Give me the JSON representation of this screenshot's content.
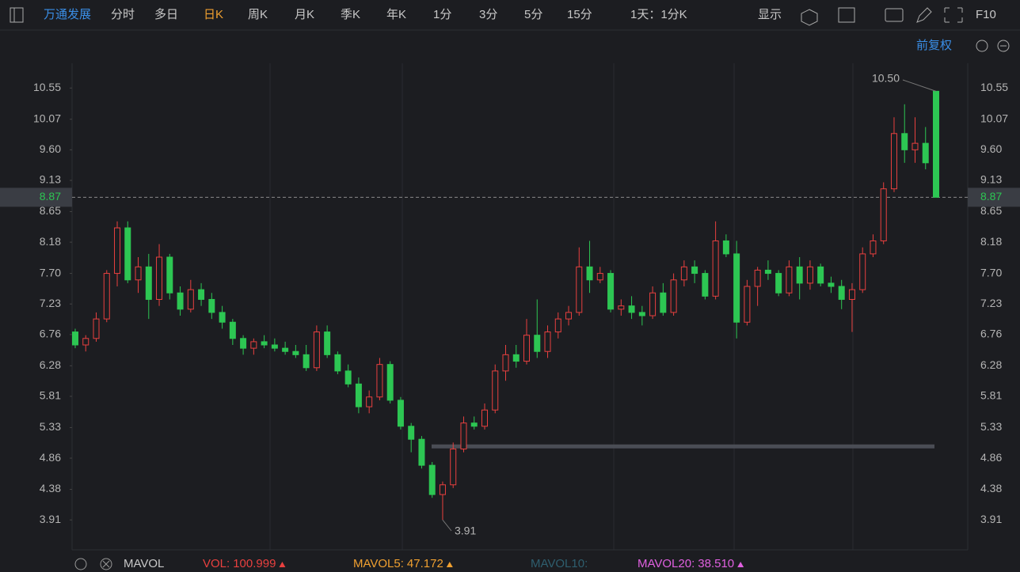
{
  "toolbar": {
    "stock": "万通发展",
    "periods": [
      "分时",
      "多日",
      "日K",
      "周K",
      "月K",
      "季K",
      "年K",
      "1分",
      "3分",
      "5分",
      "15分"
    ],
    "active_period": 2,
    "range": "1天：1分K",
    "display": "显示",
    "f10": "F10",
    "adjust": "前复权"
  },
  "indicator": {
    "name": "MAVOL",
    "items": [
      {
        "label": "VOL:",
        "value": "100.999",
        "color": "#e8403f"
      },
      {
        "label": "MAVOL5:",
        "value": "47.172",
        "color": "#f0a030"
      },
      {
        "label": "MAVOL10:",
        "value": "",
        "color": "#2e5e6e"
      },
      {
        "label": "MAVOL20:",
        "value": "38.510",
        "color": "#e060e0"
      }
    ]
  },
  "chart_data": {
    "type": "candlestick",
    "up_color": "#e8403f",
    "down_color": "#2dc653",
    "ylim": [
      3.45,
      10.93
    ],
    "yticks": [
      {
        "value": 10.55,
        "label": "10.55"
      },
      10.07,
      {
        "value": 9.6,
        "label": "9.60"
      },
      9.13,
      8.65,
      8.18,
      {
        "value": 7.7,
        "label": "7.70"
      },
      7.23,
      6.76,
      6.28,
      5.81,
      5.33,
      4.86,
      4.38,
      3.91
    ],
    "open": [
      6.8,
      6.6,
      6.7,
      7.0,
      7.7,
      8.4,
      7.6,
      7.8,
      7.3,
      7.95,
      7.4,
      7.15,
      7.45,
      7.3,
      7.1,
      6.95,
      6.7,
      6.55,
      6.65,
      6.6,
      6.55,
      6.5,
      6.45,
      6.25,
      6.8,
      6.45,
      6.2,
      6.0,
      5.65,
      5.8,
      6.3,
      5.75,
      5.35,
      5.15,
      4.75,
      4.3,
      4.45,
      5.0,
      5.4,
      5.35,
      5.6,
      6.2,
      6.45,
      6.35,
      6.75,
      6.5,
      6.8,
      7.0,
      7.1,
      7.8,
      7.6,
      7.7,
      7.15,
      7.2,
      7.1,
      7.05,
      7.4,
      7.1,
      7.6,
      7.8,
      7.7,
      7.35,
      8.2,
      8.0,
      6.95,
      7.5,
      7.75,
      7.7,
      7.4,
      7.8,
      7.55,
      7.8,
      7.55,
      7.5,
      7.3,
      7.45,
      8.0,
      8.2,
      9.0,
      9.85,
      9.6,
      9.7,
      10.5
    ],
    "high": [
      6.85,
      6.75,
      7.1,
      7.75,
      8.5,
      8.5,
      7.95,
      8.0,
      8.15,
      8.0,
      7.5,
      7.6,
      7.55,
      7.4,
      7.2,
      7.0,
      6.75,
      6.7,
      6.75,
      6.7,
      6.65,
      6.6,
      6.6,
      6.9,
      6.9,
      6.5,
      6.3,
      6.1,
      5.9,
      6.4,
      6.35,
      5.8,
      5.4,
      5.2,
      4.8,
      4.5,
      5.1,
      5.5,
      5.5,
      5.7,
      6.3,
      6.6,
      6.6,
      7.0,
      7.3,
      6.9,
      7.1,
      7.2,
      8.1,
      8.2,
      7.8,
      7.75,
      7.3,
      7.35,
      7.2,
      7.5,
      7.55,
      7.7,
      7.9,
      7.9,
      7.75,
      8.5,
      8.3,
      8.2,
      7.6,
      7.8,
      7.9,
      7.75,
      7.9,
      7.95,
      7.9,
      7.85,
      7.65,
      7.6,
      7.55,
      8.1,
      8.3,
      9.1,
      10.1,
      10.3,
      10.1,
      9.95,
      10.5
    ],
    "low": [
      6.55,
      6.5,
      6.65,
      6.95,
      7.5,
      7.55,
      7.4,
      7.0,
      7.2,
      7.3,
      7.05,
      7.1,
      7.2,
      7.0,
      6.85,
      6.6,
      6.45,
      6.45,
      6.55,
      6.5,
      6.45,
      6.4,
      6.2,
      6.2,
      6.4,
      6.15,
      5.95,
      5.55,
      5.55,
      5.75,
      5.7,
      5.3,
      4.95,
      4.7,
      4.25,
      3.91,
      4.4,
      4.95,
      5.3,
      5.3,
      5.55,
      6.05,
      6.25,
      6.3,
      6.4,
      6.4,
      6.7,
      6.9,
      7.05,
      7.4,
      7.55,
      7.1,
      7.05,
      7.0,
      6.9,
      7.0,
      7.05,
      7.05,
      7.5,
      7.55,
      7.3,
      7.3,
      7.95,
      6.7,
      6.9,
      7.2,
      7.6,
      7.35,
      7.35,
      7.3,
      7.45,
      7.5,
      7.4,
      7.15,
      6.8,
      7.4,
      7.95,
      8.15,
      8.95,
      9.4,
      9.4,
      9.3,
      8.87
    ],
    "close": [
      6.6,
      6.7,
      7.0,
      7.7,
      8.4,
      7.6,
      7.8,
      7.3,
      7.95,
      7.4,
      7.15,
      7.45,
      7.3,
      7.1,
      6.95,
      6.7,
      6.55,
      6.65,
      6.6,
      6.55,
      6.5,
      6.45,
      6.25,
      6.8,
      6.45,
      6.2,
      6.0,
      5.65,
      5.8,
      6.3,
      5.75,
      5.35,
      5.15,
      4.75,
      4.3,
      4.45,
      5.0,
      5.4,
      5.35,
      5.6,
      6.2,
      6.45,
      6.35,
      6.75,
      6.5,
      6.8,
      7.0,
      7.1,
      7.8,
      7.6,
      7.7,
      7.15,
      7.2,
      7.1,
      7.05,
      7.4,
      7.1,
      7.6,
      7.8,
      7.7,
      7.35,
      8.2,
      8.0,
      6.95,
      7.5,
      7.75,
      7.7,
      7.4,
      7.8,
      7.55,
      7.8,
      7.55,
      7.5,
      7.3,
      7.45,
      8.0,
      8.2,
      9.0,
      9.85,
      9.6,
      9.7,
      9.4,
      8.87
    ],
    "last_price": 8.87,
    "last_color": "#2dc653",
    "high_label": {
      "value": 10.5,
      "label": "10.50"
    },
    "low_label": 3.91,
    "drawn_line": 5.04
  }
}
